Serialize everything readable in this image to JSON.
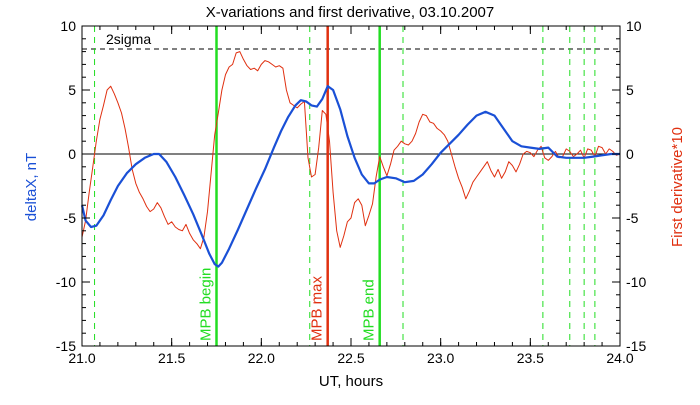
{
  "chart_data": {
    "type": "line",
    "title": "X-variations and first derivative, 03.10.2007",
    "xlabel": "UT, hours",
    "ylabel_left": "deltaX, nT",
    "ylabel_right": "First derivative*10",
    "xlim": [
      21.0,
      24.0
    ],
    "ylim": [
      -15,
      10
    ],
    "x_ticks": [
      21.0,
      21.5,
      22.0,
      22.5,
      23.0,
      23.5,
      24.0
    ],
    "x_tick_labels": [
      "21.0",
      "21.5",
      "22.0",
      "22.5",
      "23.0",
      "23.5",
      "24.0"
    ],
    "y_ticks": [
      -15,
      -10,
      -5,
      0,
      5,
      10
    ],
    "y_tick_labels": [
      "-15",
      "-10",
      "-5",
      "0",
      "5",
      "10"
    ],
    "sigma_level": 8.2,
    "sigma_label": "2sigma",
    "colors": {
      "deltaX": "#1a50d6",
      "derivative": "#e03010",
      "mpb_boundary": "#22dd22",
      "mpb_max": "#e03010",
      "left_label": "#1a50d6",
      "right_label": "#e03010"
    },
    "series": [
      {
        "key": "deltaX",
        "x": [
          21.0,
          21.02,
          21.05,
          21.08,
          21.12,
          21.16,
          21.2,
          21.25,
          21.3,
          21.35,
          21.4,
          21.43,
          21.47,
          21.52,
          21.57,
          21.62,
          21.67,
          21.71,
          21.74,
          21.76,
          21.78,
          21.82,
          21.87,
          21.92,
          21.97,
          22.02,
          22.07,
          22.11,
          22.15,
          22.19,
          22.22,
          22.25,
          22.28,
          22.31,
          22.34,
          22.37,
          22.4,
          22.44,
          22.48,
          22.52,
          22.56,
          22.6,
          22.63,
          22.66,
          22.7,
          22.75,
          22.8,
          22.85,
          22.9,
          22.95,
          23.0,
          23.05,
          23.1,
          23.15,
          23.2,
          23.25,
          23.3,
          23.35,
          23.4,
          23.45,
          23.5,
          23.55,
          23.6,
          23.65,
          23.7,
          23.75,
          23.8,
          23.85,
          23.9,
          23.95,
          24.0
        ],
        "y": [
          -4.0,
          -5.2,
          -5.7,
          -5.6,
          -4.8,
          -3.6,
          -2.5,
          -1.5,
          -0.8,
          -0.3,
          0.0,
          0.0,
          -0.6,
          -1.8,
          -3.2,
          -4.7,
          -6.4,
          -7.8,
          -8.6,
          -8.8,
          -8.5,
          -7.4,
          -5.9,
          -4.3,
          -2.7,
          -1.2,
          0.5,
          1.8,
          2.9,
          3.8,
          4.2,
          4.1,
          3.8,
          3.7,
          4.3,
          5.3,
          5.0,
          3.5,
          1.4,
          -0.3,
          -1.6,
          -2.3,
          -2.3,
          -2.0,
          -1.8,
          -1.9,
          -2.2,
          -2.1,
          -1.6,
          -0.8,
          0.1,
          0.8,
          1.5,
          2.3,
          3.0,
          3.3,
          3.0,
          2.0,
          1.0,
          0.6,
          0.5,
          0.4,
          0.5,
          -0.2,
          -0.3,
          -0.3,
          -0.3,
          -0.2,
          -0.1,
          0.0,
          0.0
        ]
      },
      {
        "key": "derivative",
        "x": [
          21.0,
          21.02,
          21.04,
          21.06,
          21.08,
          21.1,
          21.12,
          21.14,
          21.16,
          21.18,
          21.2,
          21.22,
          21.24,
          21.26,
          21.28,
          21.3,
          21.32,
          21.34,
          21.36,
          21.38,
          21.4,
          21.42,
          21.44,
          21.46,
          21.48,
          21.5,
          21.52,
          21.54,
          21.56,
          21.58,
          21.6,
          21.62,
          21.64,
          21.66,
          21.68,
          21.7,
          21.72,
          21.74,
          21.76,
          21.78,
          21.8,
          21.82,
          21.84,
          21.86,
          21.88,
          21.9,
          21.92,
          21.94,
          21.96,
          21.98,
          22.0,
          22.02,
          22.04,
          22.06,
          22.08,
          22.1,
          22.12,
          22.14,
          22.16,
          22.18,
          22.2,
          22.22,
          22.24,
          22.26,
          22.28,
          22.3,
          22.32,
          22.34,
          22.36,
          22.38,
          22.4,
          22.42,
          22.44,
          22.46,
          22.48,
          22.5,
          22.52,
          22.54,
          22.56,
          22.58,
          22.6,
          22.62,
          22.64,
          22.66,
          22.68,
          22.7,
          22.72,
          22.74,
          22.76,
          22.78,
          22.8,
          22.82,
          22.84,
          22.86,
          22.88,
          22.9,
          22.92,
          22.94,
          22.96,
          22.98,
          23.0,
          23.02,
          23.04,
          23.06,
          23.08,
          23.1,
          23.12,
          23.14,
          23.16,
          23.18,
          23.2,
          23.22,
          23.24,
          23.26,
          23.28,
          23.3,
          23.32,
          23.34,
          23.36,
          23.38,
          23.4,
          23.42,
          23.44,
          23.46,
          23.48,
          23.5,
          23.52,
          23.54,
          23.56,
          23.58,
          23.6,
          23.62,
          23.64,
          23.66,
          23.68,
          23.7,
          23.72,
          23.74,
          23.76,
          23.78,
          23.8,
          23.82,
          23.84,
          23.86,
          23.88,
          23.9,
          23.92,
          23.94,
          23.96,
          23.98,
          24.0
        ],
        "y": [
          -6.5,
          -5.2,
          -3.0,
          -1.0,
          1.0,
          2.7,
          3.8,
          5.0,
          5.3,
          4.7,
          4.0,
          3.2,
          2.0,
          0.5,
          -1.2,
          -2.3,
          -3.0,
          -3.5,
          -4.1,
          -4.5,
          -4.3,
          -3.8,
          -4.2,
          -4.9,
          -5.5,
          -5.3,
          -5.7,
          -5.9,
          -6.0,
          -5.5,
          -6.2,
          -6.7,
          -7.0,
          -7.4,
          -6.5,
          -4.5,
          -1.5,
          1.5,
          3.2,
          5.0,
          6.2,
          6.8,
          7.0,
          7.9,
          8.0,
          7.4,
          6.9,
          6.6,
          6.7,
          6.5,
          7.0,
          7.3,
          7.2,
          7.0,
          6.8,
          6.9,
          6.7,
          5.0,
          4.0,
          3.8,
          3.6,
          3.9,
          4.1,
          -0.3,
          -1.8,
          -1.6,
          0.5,
          3.4,
          3.1,
          1.0,
          -3.0,
          -6.0,
          -7.3,
          -6.4,
          -5.3,
          -5.0,
          -3.8,
          -3.5,
          -4.0,
          -5.6,
          -4.8,
          -3.9,
          -1.8,
          -0.2,
          -1.0,
          -1.7,
          -0.8,
          0.3,
          0.6,
          1.0,
          0.8,
          0.7,
          1.0,
          1.6,
          2.5,
          3.1,
          3.0,
          2.5,
          2.4,
          2.0,
          1.8,
          1.5,
          1.0,
          0.0,
          -1.0,
          -1.9,
          -2.6,
          -3.5,
          -2.9,
          -2.2,
          -1.8,
          -1.4,
          -1.0,
          -0.6,
          -1.3,
          -1.8,
          -1.2,
          -1.9,
          -1.4,
          -0.6,
          -0.9,
          -1.4,
          -0.8,
          0.0,
          0.2,
          0.1,
          -0.2,
          0.3,
          0.6,
          -0.3,
          -0.5,
          -0.2,
          0.2,
          -0.3,
          -0.2,
          0.4,
          0.2,
          -0.2,
          0.0,
          0.3,
          -0.3,
          0.4,
          0.3,
          -0.2,
          0.6,
          0.5,
          0.0,
          0.4,
          0.2,
          -0.1,
          0.0
        ]
      }
    ],
    "vertical_lines": [
      {
        "x": 21.75,
        "style": "solid",
        "color": "#22dd22",
        "label": "MPB begin"
      },
      {
        "x": 22.37,
        "style": "solid",
        "color": "#e03010",
        "label": "MPB max"
      },
      {
        "x": 22.66,
        "style": "solid",
        "color": "#22dd22",
        "label": "MPB end"
      },
      {
        "x": 21.07,
        "style": "dashed",
        "color": "#22dd22",
        "label": ""
      },
      {
        "x": 22.27,
        "style": "dashed",
        "color": "#22dd22",
        "label": ""
      },
      {
        "x": 22.79,
        "style": "dashed",
        "color": "#22dd22",
        "label": ""
      },
      {
        "x": 23.57,
        "style": "dashed",
        "color": "#22dd22",
        "label": ""
      },
      {
        "x": 23.72,
        "style": "dashed",
        "color": "#22dd22",
        "label": ""
      },
      {
        "x": 23.8,
        "style": "dashed",
        "color": "#22dd22",
        "label": ""
      },
      {
        "x": 23.86,
        "style": "dashed",
        "color": "#22dd22",
        "label": ""
      }
    ]
  }
}
